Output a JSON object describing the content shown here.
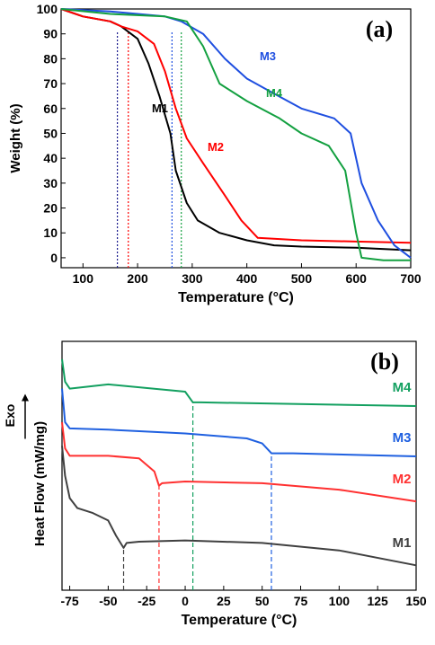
{
  "chart_data": [
    {
      "type": "line",
      "panel_label": "(a)",
      "xlabel": "Temperature (°C)",
      "ylabel": "Weight (%)",
      "xlim": [
        60,
        700
      ],
      "ylim": [
        -4,
        100
      ],
      "xticks": [
        100,
        200,
        300,
        400,
        500,
        600,
        700
      ],
      "yticks": [
        0,
        10,
        20,
        30,
        40,
        50,
        60,
        70,
        80,
        90,
        100
      ],
      "series": [
        {
          "name": "M1",
          "color": "#000000",
          "x": [
            60,
            100,
            150,
            170,
            200,
            220,
            240,
            260,
            270,
            290,
            310,
            350,
            400,
            450,
            500,
            600,
            700
          ],
          "values": [
            100,
            97,
            95,
            93,
            88,
            78,
            65,
            50,
            35,
            22,
            15,
            10,
            7,
            5,
            4.5,
            4,
            3
          ]
        },
        {
          "name": "M2",
          "color": "#ff0000",
          "x": [
            60,
            100,
            150,
            170,
            200,
            230,
            250,
            270,
            290,
            320,
            360,
            390,
            420,
            500,
            600,
            700
          ],
          "values": [
            100,
            97,
            95,
            93,
            91,
            86,
            75,
            60,
            48,
            38,
            25,
            15,
            8,
            7,
            6.5,
            6
          ]
        },
        {
          "name": "M3",
          "color": "#1f4fe0",
          "x": [
            60,
            150,
            200,
            250,
            280,
            320,
            360,
            400,
            450,
            500,
            560,
            590,
            610,
            640,
            670,
            700
          ],
          "values": [
            100,
            99,
            98,
            97,
            95,
            90,
            80,
            72,
            66,
            60,
            56,
            50,
            30,
            15,
            5,
            0
          ]
        },
        {
          "name": "M4",
          "color": "#13a040",
          "x": [
            60,
            150,
            250,
            290,
            320,
            350,
            400,
            460,
            500,
            550,
            580,
            600,
            610,
            650,
            700
          ],
          "values": [
            100,
            98,
            97,
            95,
            85,
            70,
            63,
            56,
            50,
            45,
            35,
            10,
            0,
            -1,
            -1
          ]
        }
      ],
      "reference_lines": [
        {
          "x": 163,
          "y": 91,
          "color": "#1a1a8c"
        },
        {
          "x": 183,
          "y": 91,
          "color": "#ff0000"
        },
        {
          "x": 263,
          "y": 91,
          "color": "#1f4fe0"
        },
        {
          "x": 280,
          "y": 91,
          "color": "#13a040"
        }
      ]
    },
    {
      "type": "line",
      "panel_label": "(b)",
      "xlabel": "Temperature (°C)",
      "ylabel": "Heat Flow (mW/mg)",
      "exo_label": "Exo",
      "xlim": [
        -80,
        150
      ],
      "ylim": [
        0,
        100
      ],
      "xticks": [
        -75,
        -50,
        -25,
        0,
        25,
        50,
        75,
        100,
        125,
        150
      ],
      "series": [
        {
          "name": "M1",
          "color": "#404040",
          "x": [
            -80,
            -78,
            -75,
            -70,
            -60,
            -50,
            -45,
            -40,
            -38,
            -30,
            0,
            50,
            100,
            150
          ],
          "values": [
            58,
            46,
            37,
            33,
            31,
            28,
            22,
            17,
            19,
            19.5,
            20,
            19,
            16,
            10
          ]
        },
        {
          "name": "M2",
          "color": "#ff3030",
          "x": [
            -80,
            -78,
            -75,
            -50,
            -30,
            -20,
            -17,
            -15,
            0,
            50,
            100,
            150
          ],
          "values": [
            67.5,
            57,
            54,
            54,
            53,
            47.7,
            42,
            43,
            43.7,
            43,
            40.4,
            35.7
          ]
        },
        {
          "name": "M3",
          "color": "#1f60e0",
          "x": [
            -80,
            -78,
            -75,
            -50,
            0,
            40,
            50,
            56,
            70,
            150
          ],
          "values": [
            81,
            67.5,
            65,
            64.5,
            63,
            61,
            59,
            55,
            55,
            53.8
          ]
        },
        {
          "name": "M4",
          "color": "#13a060",
          "x": [
            -80,
            -78,
            -75,
            -50,
            0,
            5,
            10,
            150
          ],
          "values": [
            92.8,
            83.8,
            81,
            82.7,
            79.8,
            75.5,
            75.5,
            74
          ]
        }
      ],
      "reference_lines": [
        {
          "x": -40,
          "y": 17,
          "color": "#404040"
        },
        {
          "x": -17,
          "y": 42,
          "color": "#ff3030"
        },
        {
          "x": 5,
          "y": 75.5,
          "color": "#13a060"
        },
        {
          "x": 56,
          "y": 55,
          "color": "#1f60e0"
        }
      ]
    }
  ]
}
